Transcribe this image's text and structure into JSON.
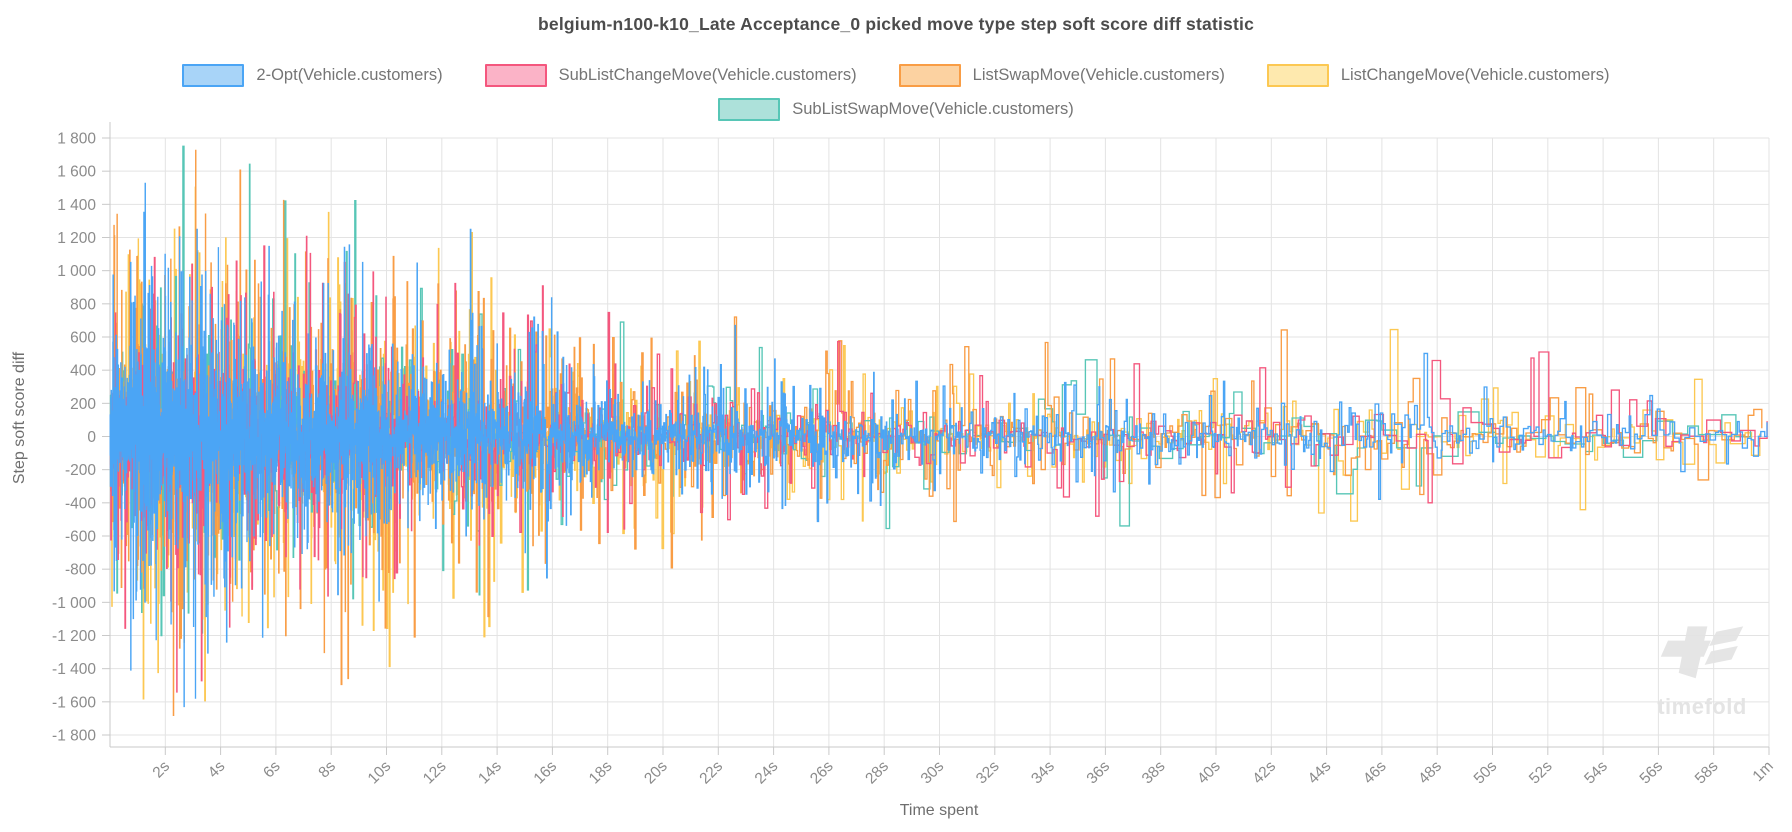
{
  "chart_data": {
    "type": "line",
    "subtype": "step-after-noise",
    "title": "belgium-n100-k10_Late Acceptance_0 picked move type step soft score diff statistic",
    "xlabel": "Time spent",
    "ylabel": "Step soft score diff",
    "watermark": "timefold",
    "legend_position": "top",
    "grid": true,
    "y_min": -1800,
    "y_max": 1800,
    "y_step": 200,
    "x_max_seconds": 60,
    "x_ticks": [
      {
        "s": 2,
        "label": "2s"
      },
      {
        "s": 4,
        "label": "4s"
      },
      {
        "s": 6,
        "label": "6s"
      },
      {
        "s": 8,
        "label": "8s"
      },
      {
        "s": 10,
        "label": "10s"
      },
      {
        "s": 12,
        "label": "12s"
      },
      {
        "s": 14,
        "label": "14s"
      },
      {
        "s": 16,
        "label": "16s"
      },
      {
        "s": 18,
        "label": "18s"
      },
      {
        "s": 20,
        "label": "20s"
      },
      {
        "s": 22,
        "label": "22s"
      },
      {
        "s": 24,
        "label": "24s"
      },
      {
        "s": 26,
        "label": "26s"
      },
      {
        "s": 28,
        "label": "28s"
      },
      {
        "s": 30,
        "label": "30s"
      },
      {
        "s": 32,
        "label": "32s"
      },
      {
        "s": 34,
        "label": "34s"
      },
      {
        "s": 36,
        "label": "36s"
      },
      {
        "s": 38,
        "label": "38s"
      },
      {
        "s": 40,
        "label": "40s"
      },
      {
        "s": 42,
        "label": "42s"
      },
      {
        "s": 44,
        "label": "44s"
      },
      {
        "s": 46,
        "label": "46s"
      },
      {
        "s": 48,
        "label": "48s"
      },
      {
        "s": 50,
        "label": "50s"
      },
      {
        "s": 52,
        "label": "52s"
      },
      {
        "s": 54,
        "label": "54s"
      },
      {
        "s": 56,
        "label": "56s"
      },
      {
        "s": 58,
        "label": "58s"
      },
      {
        "s": 60,
        "label": "1m"
      }
    ],
    "envelope": [
      [
        0,
        1250
      ],
      [
        1,
        1600
      ],
      [
        2,
        1750
      ],
      [
        3,
        1750
      ],
      [
        4,
        1500
      ],
      [
        5,
        1650
      ],
      [
        6,
        1450
      ],
      [
        7,
        1350
      ],
      [
        8,
        1550
      ],
      [
        9,
        1400
      ],
      [
        10,
        1450
      ],
      [
        11,
        1250
      ],
      [
        12,
        1300
      ],
      [
        13,
        1350
      ],
      [
        14,
        1150
      ],
      [
        15,
        1000
      ],
      [
        16,
        1050
      ],
      [
        17,
        900
      ],
      [
        18,
        850
      ],
      [
        19,
        800
      ],
      [
        20,
        780
      ],
      [
        21,
        820
      ],
      [
        22,
        750
      ],
      [
        23,
        700
      ],
      [
        24,
        700
      ],
      [
        25,
        650
      ],
      [
        26,
        700
      ],
      [
        27,
        620
      ],
      [
        28,
        700
      ],
      [
        29,
        600
      ],
      [
        30,
        560
      ],
      [
        31,
        540
      ],
      [
        32,
        520
      ],
      [
        33,
        600
      ],
      [
        34,
        560
      ],
      [
        35,
        520
      ],
      [
        36,
        560
      ],
      [
        37,
        520
      ],
      [
        38,
        500
      ],
      [
        39,
        520
      ],
      [
        40,
        560
      ],
      [
        41,
        540
      ],
      [
        42,
        690
      ],
      [
        43,
        560
      ],
      [
        44,
        600
      ],
      [
        45,
        620
      ],
      [
        46,
        710
      ],
      [
        47,
        560
      ],
      [
        48,
        520
      ],
      [
        49,
        480
      ],
      [
        50,
        460
      ],
      [
        51,
        620
      ],
      [
        52,
        560
      ],
      [
        53,
        480
      ],
      [
        54,
        460
      ],
      [
        55,
        440
      ],
      [
        56,
        470
      ],
      [
        57,
        430
      ],
      [
        58,
        470
      ],
      [
        59,
        430
      ],
      [
        60,
        460
      ]
    ],
    "series": [
      {
        "id": "2opt",
        "name": "2-Opt(Vehicle.customers)",
        "color": "#4BA5F5",
        "fill": "#A8D4F8",
        "legend_row": 1,
        "z": 5,
        "seed": 11,
        "dt0": 0.0042,
        "sigma": 0.13,
        "spike_p": 0.006,
        "amp": 0.93,
        "features": [
          [
            1.27,
            1540
          ],
          [
            2.68,
            -1720
          ],
          [
            22.6,
            700
          ],
          [
            47.5,
            640
          ]
        ]
      },
      {
        "id": "sublistchange",
        "name": "SubListChangeMove(Vehicle.customers)",
        "color": "#F4577E",
        "fill": "#FBB3C7",
        "legend_row": 1,
        "z": 4,
        "seed": 22,
        "dt0": 0.012,
        "sigma": 0.15,
        "spike_p": 0.02,
        "amp": 0.88,
        "features": [
          [
            2.4,
            -1560
          ],
          [
            7.1,
            1310
          ],
          [
            18.0,
            830
          ],
          [
            35.5,
            -900
          ],
          [
            51.6,
            620
          ]
        ]
      },
      {
        "id": "listswap",
        "name": "ListSwapMove(Vehicle.customers)",
        "color": "#F99D45",
        "fill": "#FCD2A1",
        "legend_row": 1,
        "z": 3,
        "seed": 33,
        "dt0": 0.009,
        "sigma": 0.15,
        "spike_p": 0.025,
        "amp": 1.0,
        "features": [
          [
            0.15,
            1210
          ],
          [
            4.7,
            1640
          ],
          [
            8.6,
            -1500
          ],
          [
            33.8,
            900
          ],
          [
            42.3,
            690
          ]
        ]
      },
      {
        "id": "listchange",
        "name": "ListChangeMove(Vehicle.customers)",
        "color": "#FCC852",
        "fill": "#FEE9AE",
        "legend_row": 1,
        "z": 1,
        "seed": 44,
        "dt0": 0.009,
        "sigma": 0.15,
        "spike_p": 0.03,
        "amp": 0.97,
        "features": [
          [
            1.2,
            -1600
          ],
          [
            7.9,
            1350
          ],
          [
            10.1,
            -1450
          ],
          [
            13.5,
            -1420
          ],
          [
            46.2,
            710
          ]
        ]
      },
      {
        "id": "sublistswap",
        "name": "SubListSwapMove(Vehicle.customers)",
        "color": "#57C6B6",
        "fill": "#ADE1DA",
        "legend_row": 2,
        "z": 2,
        "seed": 55,
        "dt0": 0.022,
        "sigma": 0.14,
        "spike_p": 0.02,
        "amp": 1.0,
        "features": [
          [
            2.62,
            1780
          ],
          [
            6.3,
            1550
          ],
          [
            36.5,
            -620
          ]
        ]
      }
    ]
  }
}
